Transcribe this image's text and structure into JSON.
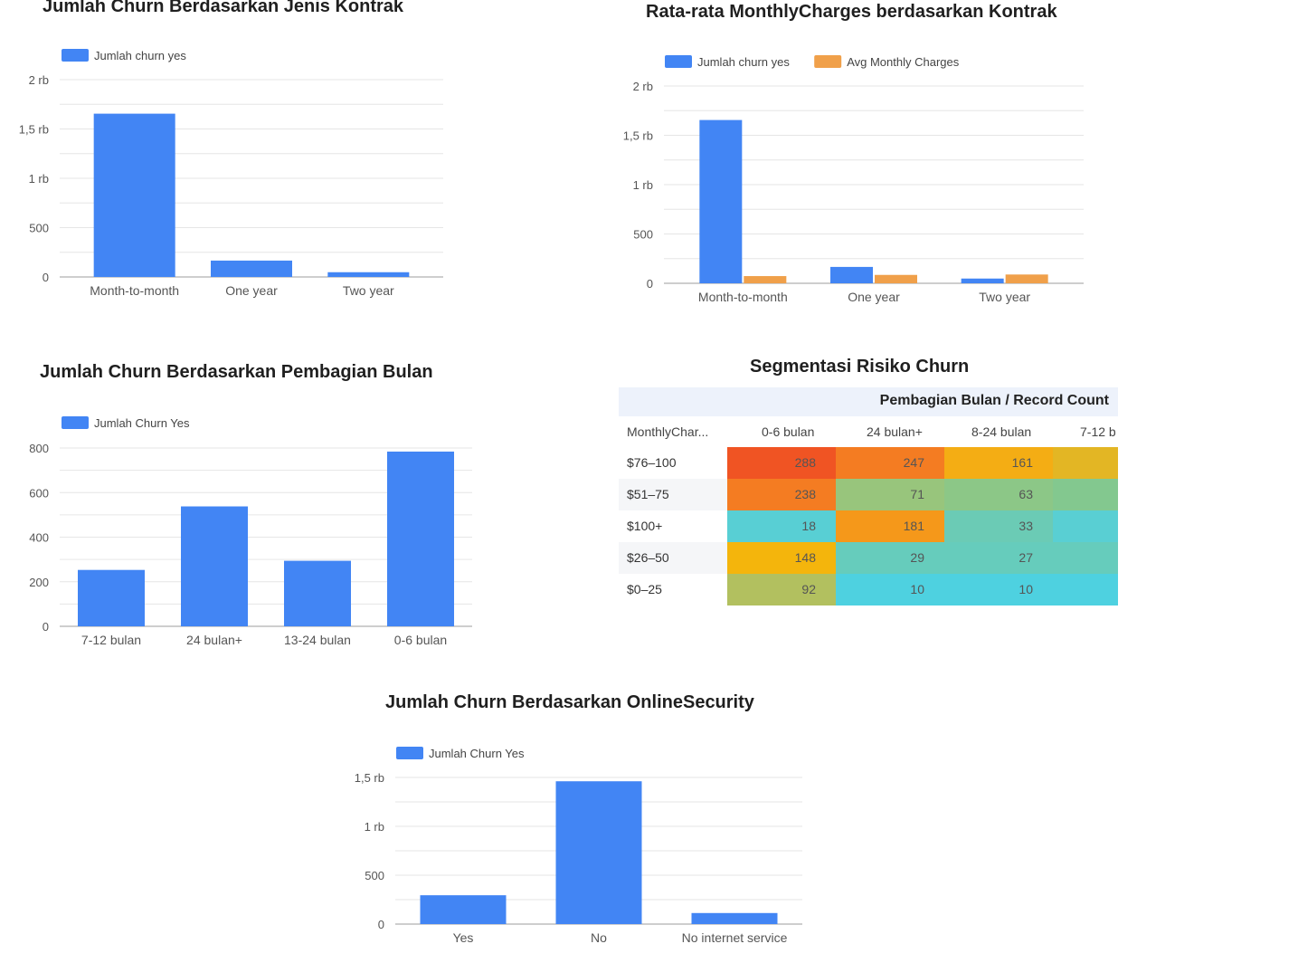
{
  "chart_data": [
    {
      "type": "bar",
      "title": "Jumlah Churn Berdasarkan Jenis Kontrak",
      "categories": [
        "Month-to-month",
        "One year",
        "Two year"
      ],
      "series": [
        {
          "name": "Jumlah churn yes",
          "values": [
            1655,
            166,
            48
          ],
          "color": "#4285f4"
        }
      ],
      "yticks": [
        {
          "v": 0,
          "label": "0"
        },
        {
          "v": 500,
          "label": "500"
        },
        {
          "v": 1000,
          "label": "1 rb"
        },
        {
          "v": 1500,
          "label": "1,5 rb"
        },
        {
          "v": 2000,
          "label": "2 rb"
        }
      ],
      "ylim": [
        0,
        2000
      ],
      "grid": true,
      "legend": "top-left"
    },
    {
      "type": "bar",
      "title": "Rata-rata MonthlyCharges berdasarkan Kontrak",
      "categories": [
        "Month-to-month",
        "One year",
        "Two year"
      ],
      "series": [
        {
          "name": "Jumlah churn yes",
          "values": [
            1655,
            166,
            48
          ],
          "color": "#4285f4"
        },
        {
          "name": "Avg Monthly Charges",
          "values": [
            73,
            85,
            89
          ],
          "color": "#f0a04a"
        }
      ],
      "yticks": [
        {
          "v": 0,
          "label": "0"
        },
        {
          "v": 500,
          "label": "500"
        },
        {
          "v": 1000,
          "label": "1 rb"
        },
        {
          "v": 1500,
          "label": "1,5 rb"
        },
        {
          "v": 2000,
          "label": "2 rb"
        }
      ],
      "ylim": [
        0,
        2000
      ],
      "grid": true,
      "legend": "top-left"
    },
    {
      "type": "bar",
      "title": "Jumlah Churn Berdasarkan Pembagian Bulan",
      "categories": [
        "7-12 bulan",
        "24 bulan+",
        "13-24 bulan",
        "0-6 bulan"
      ],
      "series": [
        {
          "name": "Jumlah Churn Yes",
          "values": [
            253,
            538,
            294,
            784
          ],
          "color": "#4285f4"
        }
      ],
      "yticks": [
        {
          "v": 0,
          "label": "0"
        },
        {
          "v": 200,
          "label": "200"
        },
        {
          "v": 400,
          "label": "400"
        },
        {
          "v": 600,
          "label": "600"
        },
        {
          "v": 800,
          "label": "800"
        }
      ],
      "ylim": [
        0,
        800
      ],
      "grid": true,
      "legend": "top-left"
    },
    {
      "type": "heatmap",
      "title": "Segmentasi Risiko Churn",
      "header": "Pembagian Bulan / Record Count",
      "row_header": "MonthlyChar...",
      "columns": [
        "0-6 bulan",
        "24 bulan+",
        "8-24 bulan",
        "7-12 b"
      ],
      "rows": [
        {
          "label": "$76–100",
          "values": [
            "288",
            "247",
            "161",
            ""
          ],
          "colors": [
            "#f05423",
            "#f47c22",
            "#f4ad14",
            "#e3b624"
          ]
        },
        {
          "label": "$51–75",
          "values": [
            "238",
            "71",
            "63",
            ""
          ],
          "colors": [
            "#f47c22",
            "#98c57c",
            "#8cc787",
            "#83c88f"
          ]
        },
        {
          "label": "$100+",
          "values": [
            "18",
            "181",
            "33",
            ""
          ],
          "colors": [
            "#58cfd4",
            "#f5981a",
            "#6bcbb5",
            "#59cfd3"
          ]
        },
        {
          "label": "$26–50",
          "values": [
            "148",
            "29",
            "27",
            ""
          ],
          "colors": [
            "#f4b50c",
            "#66ccbc",
            "#66ccbc",
            "#66ccbc"
          ]
        },
        {
          "label": "$0–25",
          "values": [
            "92",
            "10",
            "10",
            ""
          ],
          "colors": [
            "#b2c05f",
            "#4ed1e0",
            "#4ed1e0",
            "#4ed1e0"
          ]
        }
      ]
    },
    {
      "type": "bar",
      "title": "Jumlah Churn Berdasarkan OnlineSecurity",
      "categories": [
        "Yes",
        "No",
        "No internet service"
      ],
      "series": [
        {
          "name": "Jumlah Churn Yes",
          "values": [
            295,
            1461,
            113
          ],
          "color": "#4285f4"
        }
      ],
      "yticks": [
        {
          "v": 0,
          "label": "0"
        },
        {
          "v": 500,
          "label": "500"
        },
        {
          "v": 1000,
          "label": "1 rb"
        },
        {
          "v": 1500,
          "label": "1,5 rb"
        }
      ],
      "ylim": [
        0,
        1500
      ],
      "grid": true,
      "legend": "top-left"
    }
  ]
}
